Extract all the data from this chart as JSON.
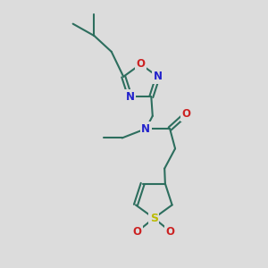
{
  "background_color": "#dcdcdc",
  "bond_color": "#2d6e5e",
  "N_color": "#2222cc",
  "O_color": "#cc2222",
  "S_color": "#bbbb00",
  "line_width": 1.5,
  "font_size": 8.5,
  "fig_w": 3.0,
  "fig_h": 3.0,
  "dpi": 100,
  "xlim": [
    0,
    10
  ],
  "ylim": [
    0,
    10
  ]
}
